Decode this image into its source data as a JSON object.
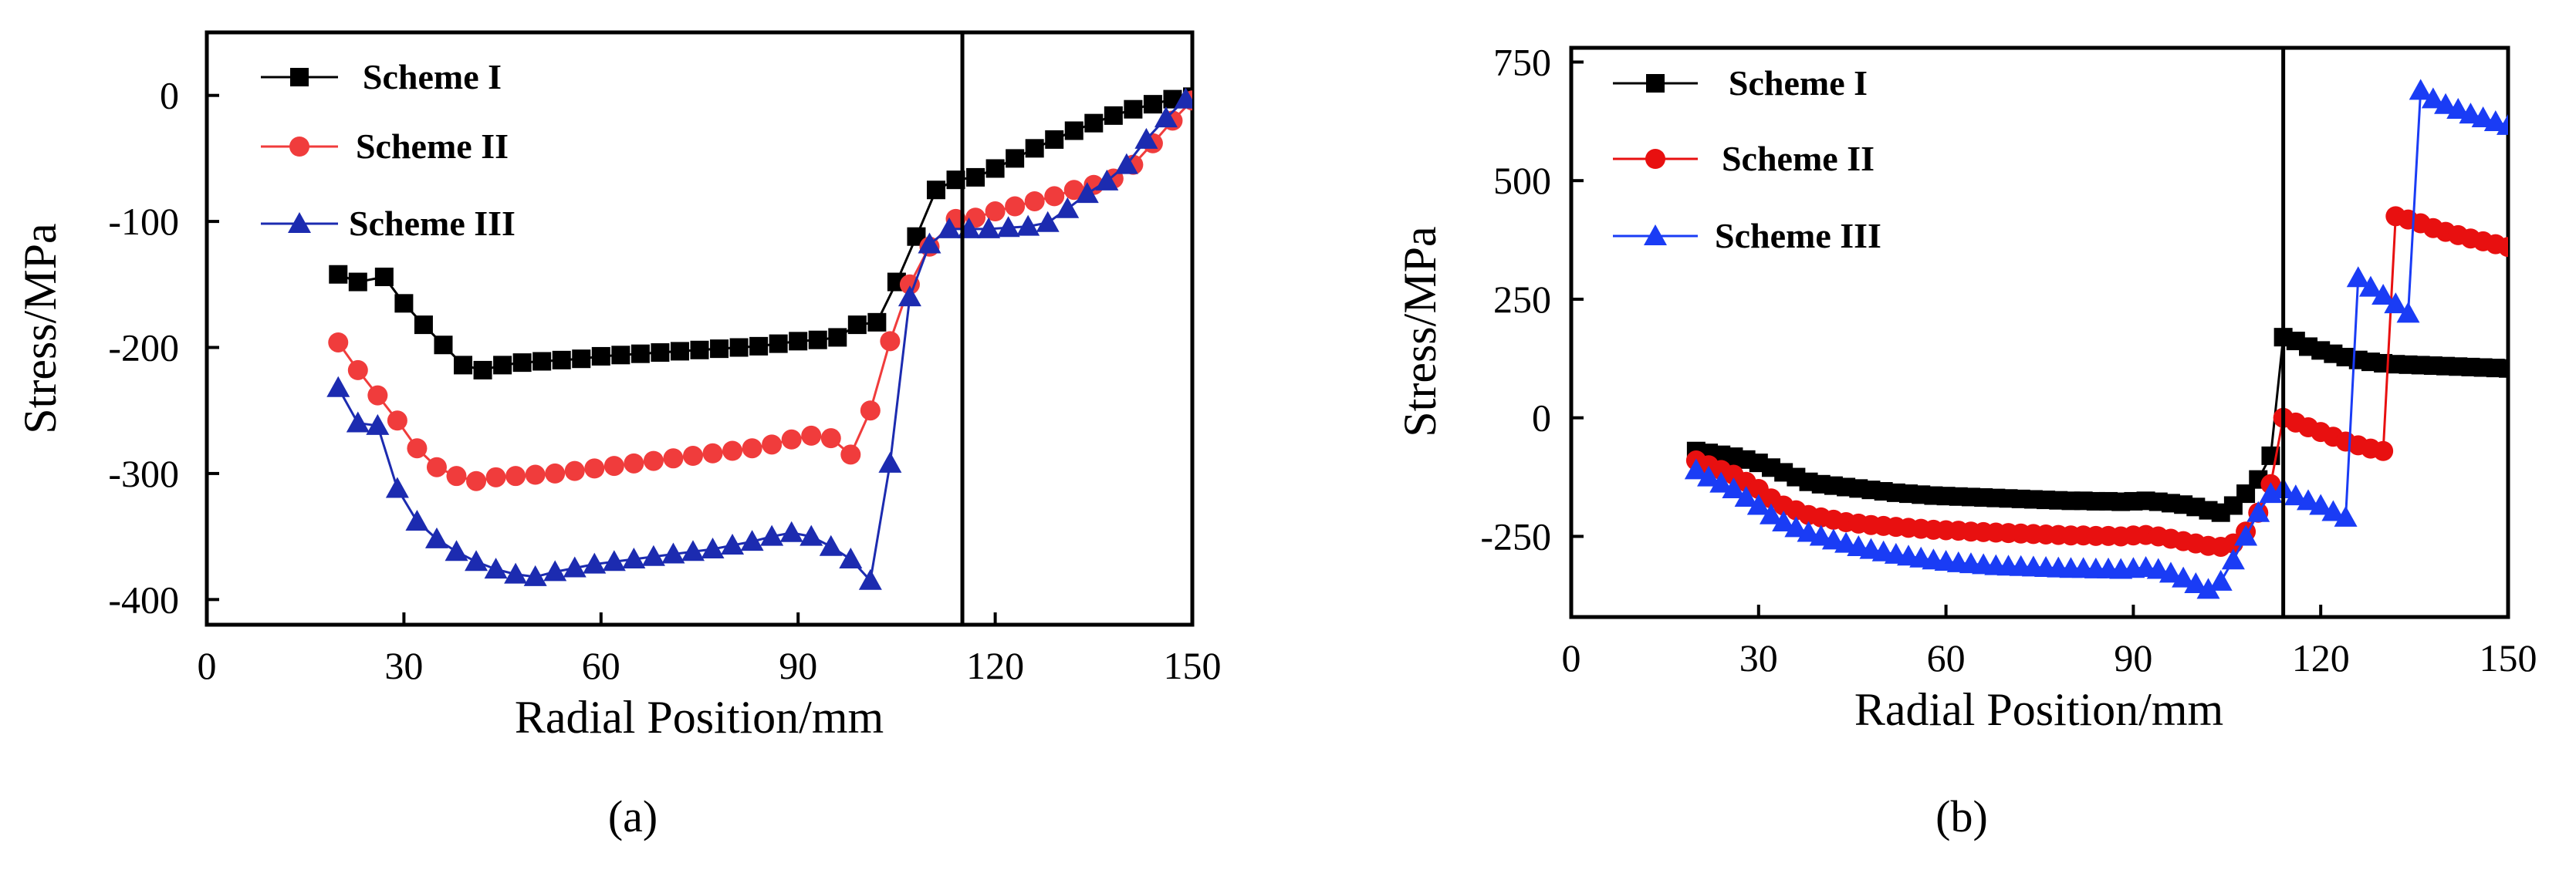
{
  "chart_data": [
    {
      "type": "line",
      "panel_label": "(a)",
      "xlabel": "Radial Position/mm",
      "ylabel": "Stress/MPa",
      "xlim": [
        0,
        150
      ],
      "ylim": [
        -420,
        50
      ],
      "xticks": [
        0,
        30,
        60,
        90,
        120,
        150
      ],
      "yticks": [
        0,
        -100,
        -200,
        -300,
        -400
      ],
      "vline": 115,
      "grid": false,
      "legend_position": "top-left",
      "series": [
        {
          "name": "Scheme I",
          "color": "#000000",
          "marker": "square",
          "x": [
            20,
            23,
            27,
            30,
            33,
            36,
            39,
            42,
            45,
            48,
            51,
            54,
            57,
            60,
            63,
            66,
            69,
            72,
            75,
            78,
            81,
            84,
            87,
            90,
            93,
            96,
            99,
            102,
            105,
            108,
            111,
            114,
            117,
            120,
            123,
            126,
            129,
            132,
            135,
            138,
            141,
            144,
            147,
            150
          ],
          "y": [
            -142,
            -148,
            -144,
            -165,
            -182,
            -198,
            -214,
            -218,
            -214,
            -212,
            -211,
            -210,
            -209,
            -207,
            -206,
            -205,
            -204,
            -203,
            -202,
            -201,
            -200,
            -199,
            -197,
            -195,
            -194,
            -192,
            -182,
            -180,
            -148,
            -112,
            -75,
            -67,
            -65,
            -58,
            -50,
            -42,
            -35,
            -28,
            -22,
            -16,
            -11,
            -7,
            -3,
            -1
          ]
        },
        {
          "name": "Scheme II",
          "color": "#f03c3c",
          "marker": "circle",
          "x": [
            20,
            23,
            26,
            29,
            32,
            35,
            38,
            41,
            44,
            47,
            50,
            53,
            56,
            59,
            62,
            65,
            68,
            71,
            74,
            77,
            80,
            83,
            86,
            89,
            92,
            95,
            98,
            101,
            104,
            107,
            110,
            114,
            117,
            120,
            123,
            126,
            129,
            132,
            135,
            138,
            141,
            144,
            147,
            150
          ],
          "y": [
            -196,
            -218,
            -238,
            -258,
            -280,
            -295,
            -302,
            -306,
            -303,
            -302,
            -301,
            -300,
            -298,
            -296,
            -294,
            -292,
            -290,
            -288,
            -286,
            -284,
            -282,
            -280,
            -277,
            -273,
            -270,
            -272,
            -285,
            -250,
            -195,
            -150,
            -120,
            -98,
            -97,
            -92,
            -88,
            -84,
            -80,
            -75,
            -71,
            -66,
            -55,
            -38,
            -20,
            -4
          ]
        },
        {
          "name": "Scheme III",
          "color": "#1c2bb0",
          "marker": "triangle",
          "x": [
            20,
            23,
            26,
            29,
            32,
            35,
            38,
            41,
            44,
            47,
            50,
            53,
            56,
            59,
            62,
            65,
            68,
            71,
            74,
            77,
            80,
            83,
            86,
            89,
            92,
            95,
            98,
            101,
            104,
            107,
            110,
            113,
            116,
            119,
            122,
            125,
            128,
            131,
            134,
            137,
            140,
            143,
            146,
            149
          ],
          "y": [
            -232,
            -260,
            -262,
            -312,
            -338,
            -352,
            -362,
            -370,
            -376,
            -380,
            -382,
            -378,
            -375,
            -372,
            -370,
            -368,
            -366,
            -364,
            -362,
            -360,
            -357,
            -354,
            -350,
            -347,
            -350,
            -358,
            -368,
            -385,
            -292,
            -160,
            -118,
            -106,
            -106,
            -106,
            -105,
            -104,
            -101,
            -90,
            -78,
            -68,
            -55,
            -35,
            -18,
            -3
          ]
        }
      ]
    },
    {
      "type": "line",
      "panel_label": "(b)",
      "xlabel": "Radial Position/mm",
      "ylabel": "Stress/MPa",
      "xlim": [
        0,
        150
      ],
      "ylim": [
        -420,
        780
      ],
      "xticks": [
        0,
        30,
        60,
        90,
        120,
        150
      ],
      "yticks": [
        750,
        500,
        250,
        0,
        -250
      ],
      "vline": 114,
      "grid": false,
      "legend_position": "top-left",
      "series": [
        {
          "name": "Scheme I",
          "color": "#000000",
          "marker": "square",
          "x": [
            20,
            22,
            24,
            26,
            28,
            30,
            32,
            34,
            36,
            38,
            40,
            42,
            44,
            46,
            48,
            50,
            52,
            54,
            56,
            58,
            60,
            62,
            64,
            66,
            68,
            70,
            72,
            74,
            76,
            78,
            80,
            82,
            84,
            86,
            88,
            90,
            92,
            94,
            96,
            98,
            100,
            102,
            104,
            106,
            108,
            110,
            112,
            114,
            116,
            118,
            120,
            122,
            124,
            126,
            128,
            130,
            132,
            134,
            136,
            138,
            140,
            142,
            144,
            146,
            148,
            150
          ],
          "y": [
            -70,
            -74,
            -78,
            -82,
            -88,
            -95,
            -105,
            -115,
            -125,
            -135,
            -140,
            -143,
            -146,
            -149,
            -152,
            -155,
            -158,
            -160,
            -162,
            -164,
            -165,
            -166,
            -167,
            -168,
            -169,
            -170,
            -171,
            -172,
            -173,
            -174,
            -175,
            -175,
            -176,
            -176,
            -177,
            -176,
            -175,
            -177,
            -180,
            -183,
            -188,
            -195,
            -200,
            -185,
            -160,
            -130,
            -80,
            170,
            162,
            150,
            142,
            135,
            128,
            122,
            118,
            115,
            113,
            112,
            111,
            110,
            109,
            108,
            107,
            106,
            105,
            104
          ]
        },
        {
          "name": "Scheme II",
          "color": "#e81010",
          "marker": "circle",
          "x": [
            20,
            22,
            24,
            26,
            28,
            30,
            32,
            34,
            36,
            38,
            40,
            42,
            44,
            46,
            48,
            50,
            52,
            54,
            56,
            58,
            60,
            62,
            64,
            66,
            68,
            70,
            72,
            74,
            76,
            78,
            80,
            82,
            84,
            86,
            88,
            90,
            92,
            94,
            96,
            98,
            100,
            102,
            104,
            106,
            108,
            110,
            112,
            114,
            116,
            118,
            120,
            122,
            124,
            126,
            128,
            130,
            132,
            134,
            136,
            138,
            140,
            142,
            144,
            146,
            148,
            150
          ],
          "y": [
            -90,
            -100,
            -110,
            -120,
            -135,
            -150,
            -170,
            -185,
            -195,
            -205,
            -210,
            -215,
            -220,
            -223,
            -226,
            -228,
            -230,
            -232,
            -234,
            -236,
            -237,
            -238,
            -240,
            -241,
            -242,
            -243,
            -244,
            -245,
            -246,
            -247,
            -248,
            -248,
            -249,
            -249,
            -250,
            -248,
            -247,
            -250,
            -255,
            -260,
            -265,
            -270,
            -272,
            -265,
            -240,
            -200,
            -140,
            0,
            -10,
            -20,
            -30,
            -40,
            -50,
            -58,
            -65,
            -70,
            425,
            418,
            410,
            400,
            392,
            385,
            378,
            372,
            366,
            360
          ]
        },
        {
          "name": "Scheme III",
          "color": "#1a3cf5",
          "marker": "triangle",
          "x": [
            20,
            22,
            24,
            26,
            28,
            30,
            32,
            34,
            36,
            38,
            40,
            42,
            44,
            46,
            48,
            50,
            52,
            54,
            56,
            58,
            60,
            62,
            64,
            66,
            68,
            70,
            72,
            74,
            76,
            78,
            80,
            82,
            84,
            86,
            88,
            90,
            92,
            94,
            96,
            98,
            100,
            102,
            104,
            106,
            108,
            110,
            112,
            114,
            116,
            118,
            120,
            122,
            124,
            126,
            128,
            130,
            132,
            134,
            136,
            138,
            140,
            142,
            144,
            146,
            148,
            150
          ],
          "y": [
            -110,
            -125,
            -138,
            -150,
            -168,
            -185,
            -205,
            -220,
            -232,
            -242,
            -250,
            -258,
            -265,
            -272,
            -278,
            -283,
            -288,
            -292,
            -296,
            -300,
            -303,
            -306,
            -308,
            -310,
            -312,
            -313,
            -314,
            -315,
            -316,
            -317,
            -318,
            -318,
            -319,
            -319,
            -320,
            -318,
            -316,
            -320,
            -328,
            -338,
            -350,
            -362,
            -345,
            -300,
            -250,
            -200,
            -160,
            -150,
            -165,
            -175,
            -185,
            -198,
            -210,
            295,
            275,
            258,
            240,
            220,
            690,
            672,
            660,
            650,
            640,
            632,
            624,
            616
          ]
        }
      ]
    }
  ]
}
